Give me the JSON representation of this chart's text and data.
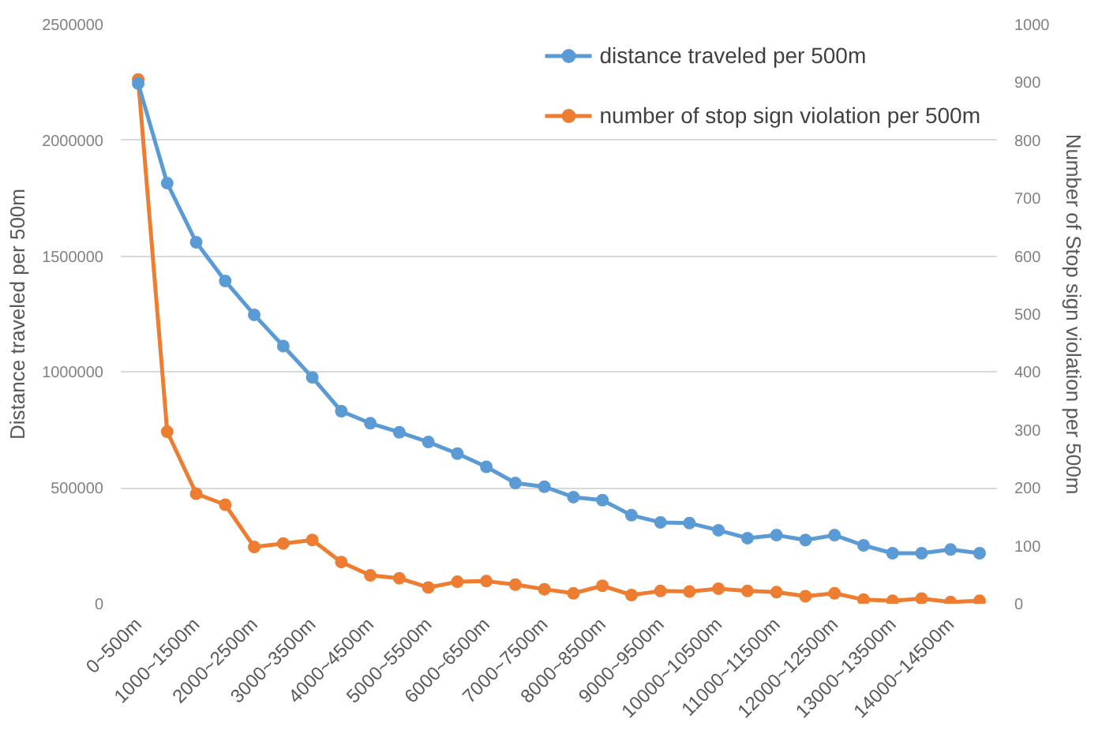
{
  "chart_data": {
    "type": "line",
    "xlabel": null,
    "ylabel": "Distance traveled per 500m",
    "y2label": "Number of Stop sign violation per 500m",
    "categories": [
      "0~500m",
      null,
      "1000~1500m",
      null,
      "2000~2500m",
      null,
      "3000~3500m",
      null,
      "4000~4500m",
      null,
      "5000~5500m",
      null,
      "6000~6500m",
      null,
      "7000~7500m",
      null,
      "8000~8500m",
      null,
      "9000~9500m",
      null,
      "10000~10500m",
      null,
      "11000~11500m",
      null,
      "12000~12500m",
      null,
      "13000~13500m",
      null,
      "14000~14500m",
      null
    ],
    "series": [
      {
        "name": "distance traveled per 500m",
        "color": "#5b9bd5",
        "values": [
          2245000,
          1815000,
          1560000,
          1393000,
          1247000,
          1112000,
          977000,
          831000,
          779000,
          740000,
          698000,
          648000,
          591000,
          521000,
          505000,
          460000,
          447000,
          382000,
          351000,
          348000,
          317000,
          283000,
          296000,
          275000,
          296000,
          252000,
          218000,
          218000,
          234000,
          218000
        ]
      },
      {
        "name": "number of stop sign violation per 500m",
        "color": "#ed7d31",
        "axis": "y2",
        "values": [
          905,
          297,
          190,
          171,
          98,
          104,
          110,
          72,
          49,
          44,
          28,
          38,
          39,
          33,
          25,
          18,
          31,
          15,
          22,
          21,
          26,
          22,
          20,
          13,
          18,
          7,
          5,
          9,
          3,
          5
        ]
      }
    ],
    "ylim": [
      0,
      2500000
    ],
    "yticks": [
      0,
      500000,
      1000000,
      1500000,
      2000000,
      2500000
    ],
    "y2lim": [
      0,
      1000
    ],
    "y2ticks": [
      0,
      100,
      200,
      300,
      400,
      500,
      600,
      700,
      800,
      900,
      1000
    ],
    "grid": "y",
    "legend": "top right",
    "marker": "circle",
    "line_style": "solid"
  }
}
